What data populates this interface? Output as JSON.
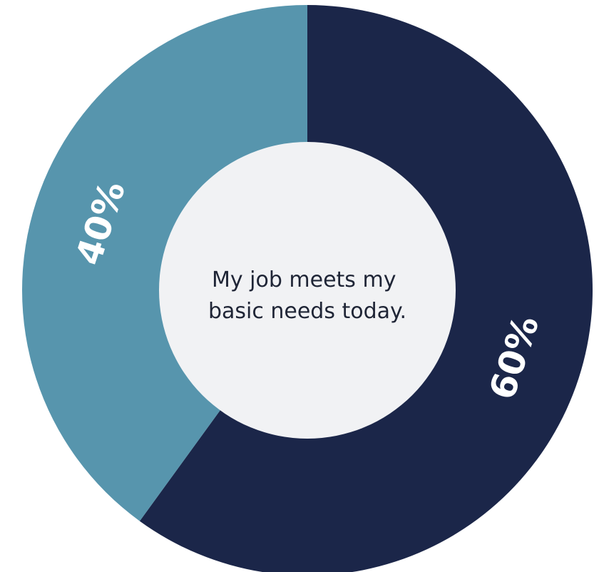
{
  "chart_data": {
    "type": "pie",
    "variant": "donut",
    "center_text": [
      "My job meets my",
      "basic needs today."
    ],
    "slices": [
      {
        "label": "60%",
        "value": 60,
        "color": "#1b2649"
      },
      {
        "label": "40%",
        "value": 40,
        "color": "#5795ad"
      }
    ],
    "hole_color": "#f1f2f4"
  }
}
